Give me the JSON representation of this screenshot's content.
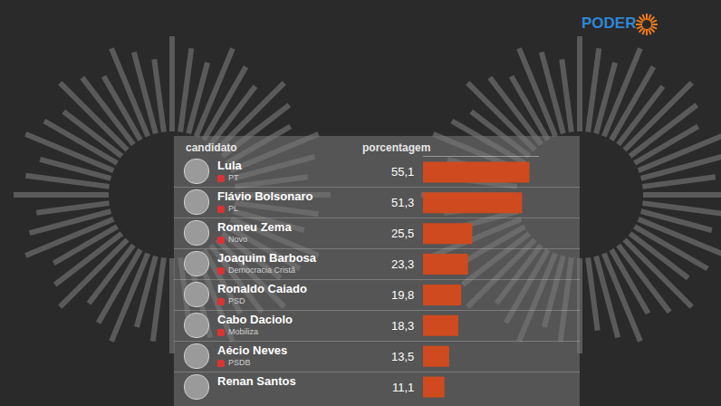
{
  "header": {
    "logo": "PODER"
  },
  "chart_data": {
    "type": "bar",
    "orientation": "horizontal",
    "columns": [
      "candidato",
      "porcentagem"
    ],
    "categories": [
      "Lula",
      "Flávio Bolsonaro",
      "Romeu Zema",
      "Joaquim Barbosa",
      "Ronaldo Caiado",
      "Cabo Daciolo",
      "Aécio Neves",
      "Renan Santos"
    ],
    "parties": [
      "PT",
      "PL",
      "Novo",
      "Democracia Cristã",
      "PSD",
      "Mobiliza",
      "PSDB",
      null
    ],
    "values": [
      55.1,
      51.3,
      25.5,
      23.3,
      19.8,
      18.3,
      13.5,
      11.1
    ],
    "value_labels": [
      "55,1",
      "51,3",
      "25,5",
      "23,3",
      "19,8",
      "18,3",
      "13,5",
      "11,1"
    ],
    "color": "#cf4a1e",
    "xlim": [
      0,
      60
    ],
    "tick_labels": false,
    "data_labels": true
  }
}
